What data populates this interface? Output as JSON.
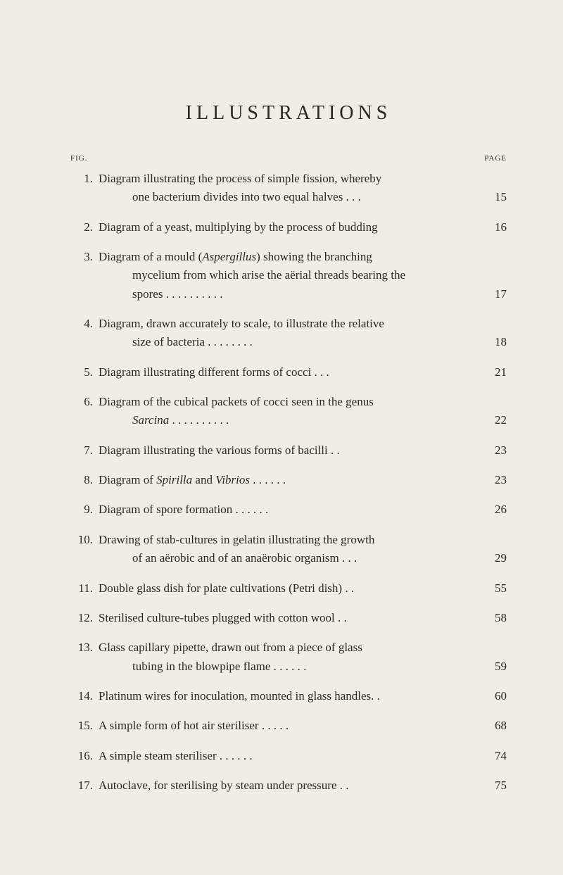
{
  "title": "ILLUSTRATIONS",
  "headers": {
    "fig": "FIG.",
    "page": "PAGE"
  },
  "entries": [
    {
      "num": "1.",
      "line1": "Diagram illustrating the process of simple fission, whereby",
      "line2": "one bacterium divides into two equal halves   .      .      .",
      "page": "15"
    },
    {
      "num": "2.",
      "line1": "Diagram of a yeast, multiplying by the process of budding",
      "page": "16"
    },
    {
      "num": "3.",
      "line1": "Diagram of a mould (",
      "italic1": "Aspergillus",
      "cont1": ") showing the branching",
      "line2": "mycelium from which arise the aërial threads bearing the",
      "line3": "spores    .       .       .       .       .       .       .       .       .       .",
      "page": "17"
    },
    {
      "num": "4.",
      "line1": "Diagram, drawn accurately to scale, to illustrate the relative",
      "line2": "size of bacteria         .       .       .       .       .       .       .       .",
      "page": "18"
    },
    {
      "num": "5.",
      "line1": "Diagram illustrating different forms of cocci   .       .       .",
      "page": "21"
    },
    {
      "num": "6.",
      "line1": "Diagram of the cubical packets of cocci seen in the genus",
      "line2italic": "Sarcina",
      "line2cont": "    .       .       .       .       .       .       .       .       .       .",
      "page": "22"
    },
    {
      "num": "7.",
      "line1": "Diagram illustrating the various forms of bacilli        .      .",
      "page": "23"
    },
    {
      "num": "8.",
      "line1": "Diagram of ",
      "italic1": "Spirilla",
      "cont1": " and ",
      "italic2": "Vibrios",
      "cont2": "   .      .      .      .      .      .",
      "page": "23"
    },
    {
      "num": "9.",
      "line1": "Diagram of spore formation      .       .       .       .       .       .",
      "page": "26"
    },
    {
      "num": "10.",
      "line1": "Drawing of stab-cultures in gelatin illustrating the growth",
      "line2": "of an aërobic and of an anaërobic organism   .      .      .",
      "page": "29"
    },
    {
      "num": "11.",
      "line1": "Double glass dish for plate cultivations (Petri dish)  .      .",
      "page": "55"
    },
    {
      "num": "12.",
      "line1": "Sterilised culture-tubes plugged with cotton wool      .      .",
      "page": "58"
    },
    {
      "num": "13.",
      "line1": "Glass capillary pipette, drawn out from a piece of glass",
      "line2": "tubing in the blowpipe flame  .      .      .      .      .      .",
      "page": "59"
    },
    {
      "num": "14.",
      "line1": "Platinum wires for inoculation, mounted in glass handles.  .",
      "page": "60"
    },
    {
      "num": "15.",
      "line1": "A simple form of hot air steriliser       .       .       .       .       .",
      "page": "68"
    },
    {
      "num": "16.",
      "line1": "A simple steam steriliser    .                 .       .       .       .       .",
      "page": "74"
    },
    {
      "num": "17.",
      "line1": "Autoclave, for sterilising by steam under pressure     .      .",
      "page": "75"
    }
  ]
}
